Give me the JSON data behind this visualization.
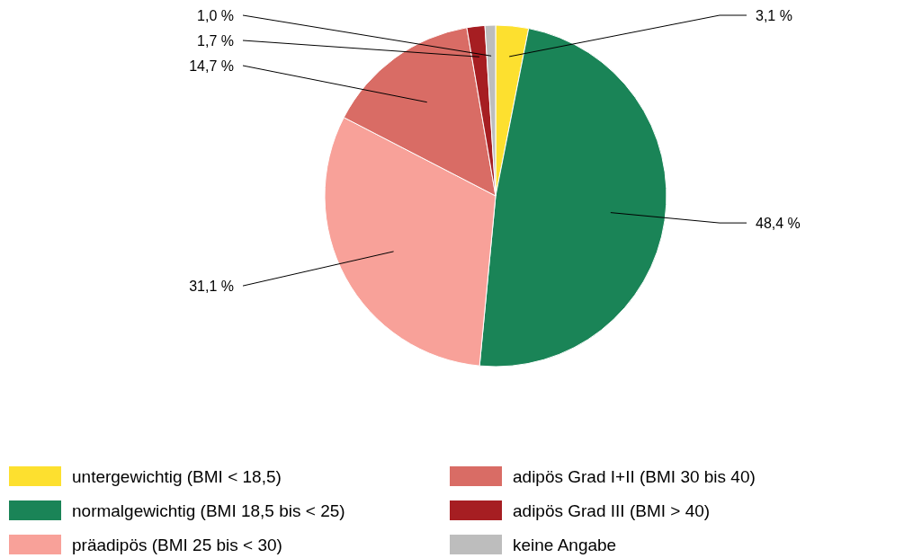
{
  "chart_data": {
    "type": "pie",
    "categories": [
      "untergewichtig (BMI < 18,5)",
      "normalgewichtig (BMI 18,5 bis < 25)",
      "präadipös (BMI 25 bis < 30)",
      "adipös Grad I+II (BMI 30 bis 40)",
      "adipös Grad III (BMI > 40)",
      "keine Angabe"
    ],
    "values": [
      3.1,
      48.4,
      31.1,
      14.7,
      1.7,
      1.0
    ],
    "colors": [
      "#fde02f",
      "#1a8457",
      "#f8a199",
      "#d96c65",
      "#a61e22",
      "#bdbdbd"
    ],
    "value_labels": [
      "3,1 %",
      "48,4 %",
      "31,1 %",
      "14,7 %",
      "1,7 %",
      "1,0 %"
    ],
    "legend": "bottom"
  }
}
